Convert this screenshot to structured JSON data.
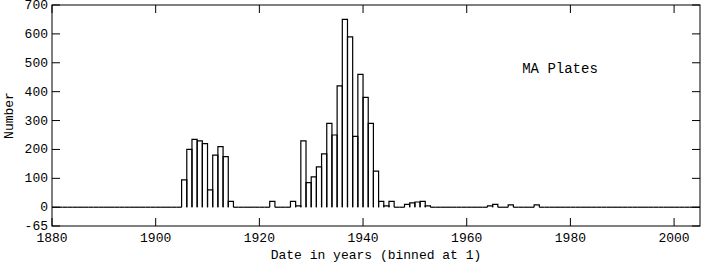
{
  "chart_data": {
    "type": "histogram",
    "x_label": "Date in years (binned at 1)",
    "y_label": "Number",
    "annotation": "MA Plates",
    "color": "#000000",
    "bins": [
      1880,
      1881,
      1882,
      1883,
      1884,
      1885,
      1886,
      1887,
      1888,
      1889,
      1890,
      1891,
      1892,
      1893,
      1894,
      1895,
      1896,
      1897,
      1898,
      1899,
      1900,
      1901,
      1902,
      1903,
      1904,
      1905,
      1906,
      1907,
      1908,
      1909,
      1910,
      1911,
      1912,
      1913,
      1914,
      1915,
      1916,
      1917,
      1918,
      1919,
      1920,
      1921,
      1922,
      1923,
      1924,
      1925,
      1926,
      1927,
      1928,
      1929,
      1930,
      1931,
      1932,
      1933,
      1934,
      1935,
      1936,
      1937,
      1938,
      1939,
      1940,
      1941,
      1942,
      1943,
      1944,
      1945,
      1946,
      1947,
      1948,
      1949,
      1950,
      1951,
      1952,
      1953,
      1954,
      1955,
      1956,
      1957,
      1958,
      1959,
      1960,
      1961,
      1962,
      1963,
      1964,
      1965,
      1966,
      1967,
      1968,
      1969,
      1970,
      1971,
      1972,
      1973,
      1974,
      1975,
      1976,
      1977,
      1978,
      1979,
      1980,
      1981,
      1982,
      1983,
      1984,
      1985,
      1986,
      1987,
      1988,
      1989,
      1990,
      1991,
      1992,
      1993,
      1994,
      1995,
      1996,
      1997,
      1998,
      1999,
      2000,
      2001,
      2002,
      2003,
      2004,
      2005
    ],
    "values": [
      0,
      0,
      0,
      0,
      0,
      0,
      0,
      0,
      0,
      0,
      0,
      0,
      0,
      0,
      0,
      0,
      0,
      0,
      0,
      0,
      0,
      0,
      0,
      0,
      0,
      95,
      200,
      235,
      230,
      220,
      60,
      180,
      210,
      175,
      20,
      0,
      0,
      0,
      0,
      0,
      0,
      0,
      20,
      0,
      0,
      0,
      20,
      5,
      230,
      85,
      105,
      140,
      185,
      290,
      250,
      420,
      650,
      590,
      245,
      460,
      380,
      290,
      125,
      20,
      5,
      20,
      0,
      0,
      10,
      15,
      18,
      20,
      5,
      0,
      0,
      0,
      0,
      0,
      0,
      0,
      0,
      0,
      0,
      0,
      5,
      10,
      0,
      0,
      8,
      0,
      0,
      0,
      0,
      8,
      0,
      0,
      0,
      0,
      0,
      0,
      0,
      0,
      0,
      0,
      0,
      0,
      0,
      0,
      0,
      0,
      0,
      0,
      0,
      0,
      0,
      0,
      0,
      0,
      0,
      0,
      0,
      0,
      0,
      0,
      0
    ],
    "xlim": [
      1880,
      2005
    ],
    "ylim": [
      -65,
      700
    ],
    "xticks": [
      1880,
      1900,
      1920,
      1940,
      1960,
      1980,
      2000
    ],
    "yticks": [
      -65,
      0,
      100,
      200,
      300,
      400,
      500,
      600,
      700
    ],
    "grid": false
  }
}
